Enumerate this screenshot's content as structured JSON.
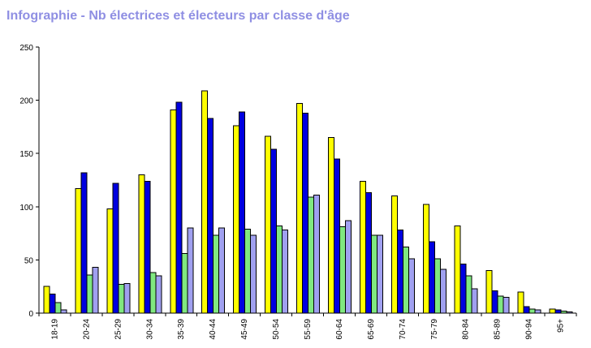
{
  "chart_data": {
    "type": "bar",
    "title": "Infographie - Nb électrices et électeurs par classe d'âge",
    "xlabel": "",
    "ylabel": "",
    "ylim": [
      0,
      250
    ],
    "yticks": [
      0,
      50,
      100,
      150,
      200,
      250
    ],
    "grid": false,
    "legend": "none",
    "categories": [
      "18-19",
      "20-24",
      "25-29",
      "30-34",
      "35-39",
      "40-44",
      "45-49",
      "50-54",
      "55-59",
      "60-64",
      "65-69",
      "70-74",
      "75-79",
      "80-84",
      "85-89",
      "90-94",
      "95+"
    ],
    "series": [
      {
        "color": "#ffff00",
        "values": [
          25,
          117,
          98,
          130,
          191,
          209,
          176,
          166,
          197,
          165,
          124,
          110,
          102,
          82,
          40,
          20,
          4
        ]
      },
      {
        "color": "#0000e0",
        "values": [
          18,
          132,
          122,
          124,
          198,
          183,
          189,
          154,
          188,
          145,
          113,
          78,
          67,
          46,
          21,
          6,
          3
        ]
      },
      {
        "color": "#80e880",
        "values": [
          10,
          36,
          27,
          38,
          56,
          73,
          79,
          82,
          109,
          81,
          73,
          62,
          51,
          35,
          16,
          4,
          2
        ]
      },
      {
        "color": "#a0a0f0",
        "values": [
          3,
          43,
          28,
          35,
          80,
          80,
          73,
          78,
          111,
          87,
          73,
          51,
          41,
          23,
          15,
          3,
          1
        ]
      }
    ]
  }
}
